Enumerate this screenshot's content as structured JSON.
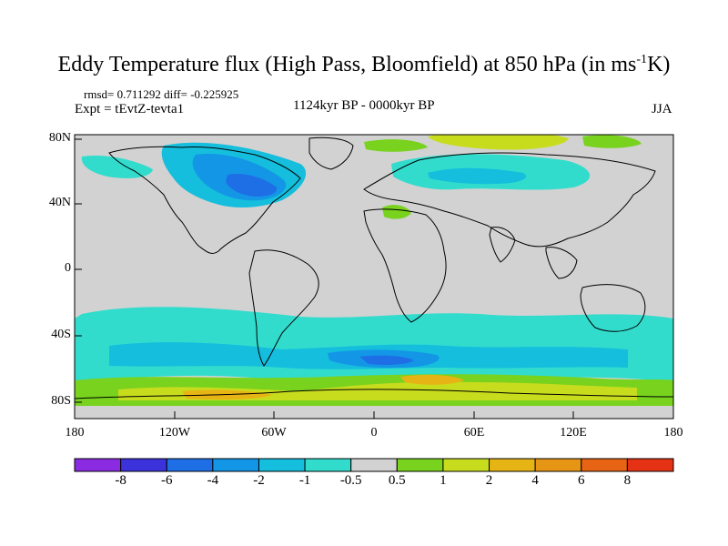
{
  "header": {
    "title_main": "Eddy Temperature flux (High Pass, Bloomfield) at 850 hPa (in ms",
    "title_sup": "-1",
    "title_end": "K)",
    "stats": "rmsd= 0.711292 diff= -0.225925",
    "expt": "Expt = tEvtZ-tevta1",
    "period": "1124kyr BP - 0000kyr BP",
    "season": "JJA"
  },
  "axes": {
    "y_ticks": [
      "80N",
      "40N",
      "0",
      "40S",
      "80S"
    ],
    "x_ticks": [
      "180",
      "120W",
      "60W",
      "0",
      "60E",
      "120E",
      "180"
    ]
  },
  "colorbar": {
    "colors": [
      "#8a2be2",
      "#3c32dc",
      "#1e6ee6",
      "#1496e6",
      "#14bedc",
      "#32dccd",
      "#d2d2d2",
      "#78d21e",
      "#c8dc1e",
      "#e6b414",
      "#e69614",
      "#e66414",
      "#e63214"
    ],
    "labels": [
      "-8",
      "-6",
      "-4",
      "-2",
      "-1",
      "-0.5",
      "0.5",
      "1",
      "2",
      "4",
      "6",
      "8"
    ]
  },
  "map_colors": {
    "ocean": "#d2d2d2",
    "land_outline": "#000000",
    "blue_dark": "#1e6ee6",
    "blue_mid": "#1496e6",
    "cyan": "#32dccd",
    "cyan_light": "#14bedc",
    "green": "#78d21e",
    "yellow": "#c8dc1e",
    "orange": "#e6b414"
  }
}
